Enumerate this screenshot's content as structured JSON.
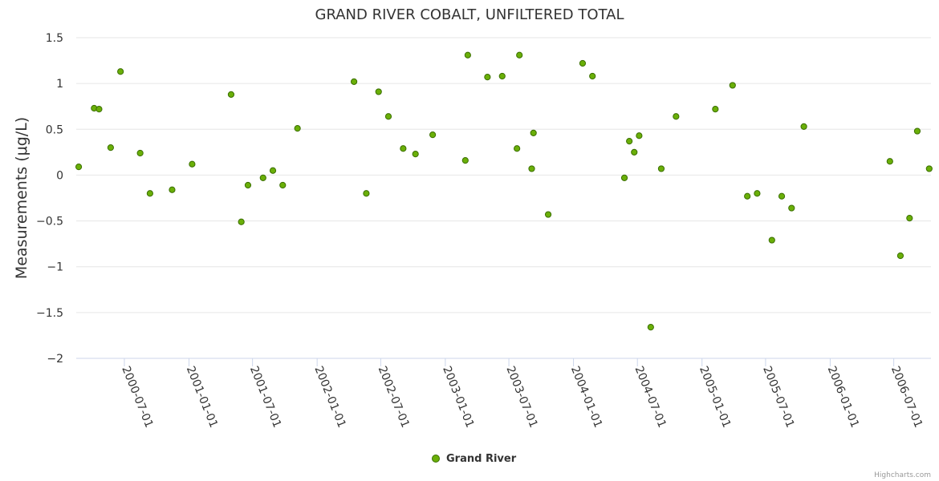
{
  "chart_data": {
    "type": "scatter",
    "title": "GRAND RIVER COBALT, UNFILTERED TOTAL",
    "xlabel": "",
    "ylabel": "Measurements (μg/L)",
    "x_type": "date",
    "xlim": [
      "2000-02-15",
      "2006-10-15"
    ],
    "ylim": [
      -2,
      1.5
    ],
    "y_ticks": [
      1.5,
      1,
      0.5,
      0,
      -0.5,
      -1,
      -1.5,
      -2
    ],
    "y_tick_labels": [
      "1.5",
      "1",
      "0.5",
      "0",
      "−0.5",
      "−1",
      "−1.5",
      "−2"
    ],
    "x_ticks": [
      "2000-07-01",
      "2001-01-01",
      "2001-07-01",
      "2002-01-01",
      "2002-07-01",
      "2003-01-01",
      "2003-07-01",
      "2004-01-01",
      "2004-07-01",
      "2005-01-01",
      "2005-07-01",
      "2006-01-01",
      "2006-07-01"
    ],
    "grid": true,
    "legend_position": "bottom-center",
    "credits": "Highcharts.com",
    "series": [
      {
        "name": "Grand River",
        "color": "#6aaf08",
        "points": [
          {
            "x": "2000-02-22",
            "y": 0.09
          },
          {
            "x": "2000-04-06",
            "y": 0.73
          },
          {
            "x": "2000-04-20",
            "y": 0.72
          },
          {
            "x": "2000-05-23",
            "y": 0.3
          },
          {
            "x": "2000-06-20",
            "y": 1.13
          },
          {
            "x": "2000-08-15",
            "y": 0.24
          },
          {
            "x": "2000-09-12",
            "y": -0.2
          },
          {
            "x": "2000-11-14",
            "y": -0.16
          },
          {
            "x": "2001-01-10",
            "y": 0.12
          },
          {
            "x": "2001-05-01",
            "y": 0.88
          },
          {
            "x": "2001-05-30",
            "y": -0.51
          },
          {
            "x": "2001-06-18",
            "y": -0.11
          },
          {
            "x": "2001-07-31",
            "y": -0.03
          },
          {
            "x": "2001-08-28",
            "y": 0.05
          },
          {
            "x": "2001-09-25",
            "y": -0.11
          },
          {
            "x": "2001-11-06",
            "y": 0.51
          },
          {
            "x": "2002-04-16",
            "y": 1.02
          },
          {
            "x": "2002-05-21",
            "y": -0.2
          },
          {
            "x": "2002-06-25",
            "y": 0.91
          },
          {
            "x": "2002-07-23",
            "y": 0.64
          },
          {
            "x": "2002-09-03",
            "y": 0.29
          },
          {
            "x": "2002-10-08",
            "y": 0.23
          },
          {
            "x": "2002-11-26",
            "y": 0.44
          },
          {
            "x": "2003-02-27",
            "y": 0.16
          },
          {
            "x": "2003-03-06",
            "y": 1.31
          },
          {
            "x": "2003-05-01",
            "y": 1.07
          },
          {
            "x": "2003-06-12",
            "y": 1.08
          },
          {
            "x": "2003-07-24",
            "y": 0.29
          },
          {
            "x": "2003-07-31",
            "y": 1.31
          },
          {
            "x": "2003-09-04",
            "y": 0.07
          },
          {
            "x": "2003-09-09",
            "y": 0.46
          },
          {
            "x": "2003-10-21",
            "y": -0.43
          },
          {
            "x": "2004-01-27",
            "y": 1.22
          },
          {
            "x": "2004-02-24",
            "y": 1.08
          },
          {
            "x": "2004-05-25",
            "y": -0.03
          },
          {
            "x": "2004-06-08",
            "y": 0.37
          },
          {
            "x": "2004-06-22",
            "y": 0.25
          },
          {
            "x": "2004-07-06",
            "y": 0.43
          },
          {
            "x": "2004-08-08",
            "y": -1.66
          },
          {
            "x": "2004-09-07",
            "y": 0.07
          },
          {
            "x": "2004-10-19",
            "y": 0.64
          },
          {
            "x": "2005-02-08",
            "y": 0.72
          },
          {
            "x": "2005-03-29",
            "y": 0.98
          },
          {
            "x": "2005-05-10",
            "y": -0.23
          },
          {
            "x": "2005-06-07",
            "y": -0.2
          },
          {
            "x": "2005-07-19",
            "y": -0.71
          },
          {
            "x": "2005-08-16",
            "y": -0.23
          },
          {
            "x": "2005-09-13",
            "y": -0.36
          },
          {
            "x": "2005-10-18",
            "y": 0.53
          },
          {
            "x": "2006-06-20",
            "y": 0.15
          },
          {
            "x": "2006-07-20",
            "y": -0.88
          },
          {
            "x": "2006-08-15",
            "y": -0.47
          },
          {
            "x": "2006-09-06",
            "y": 0.48
          },
          {
            "x": "2006-10-10",
            "y": 0.07
          }
        ]
      }
    ]
  }
}
